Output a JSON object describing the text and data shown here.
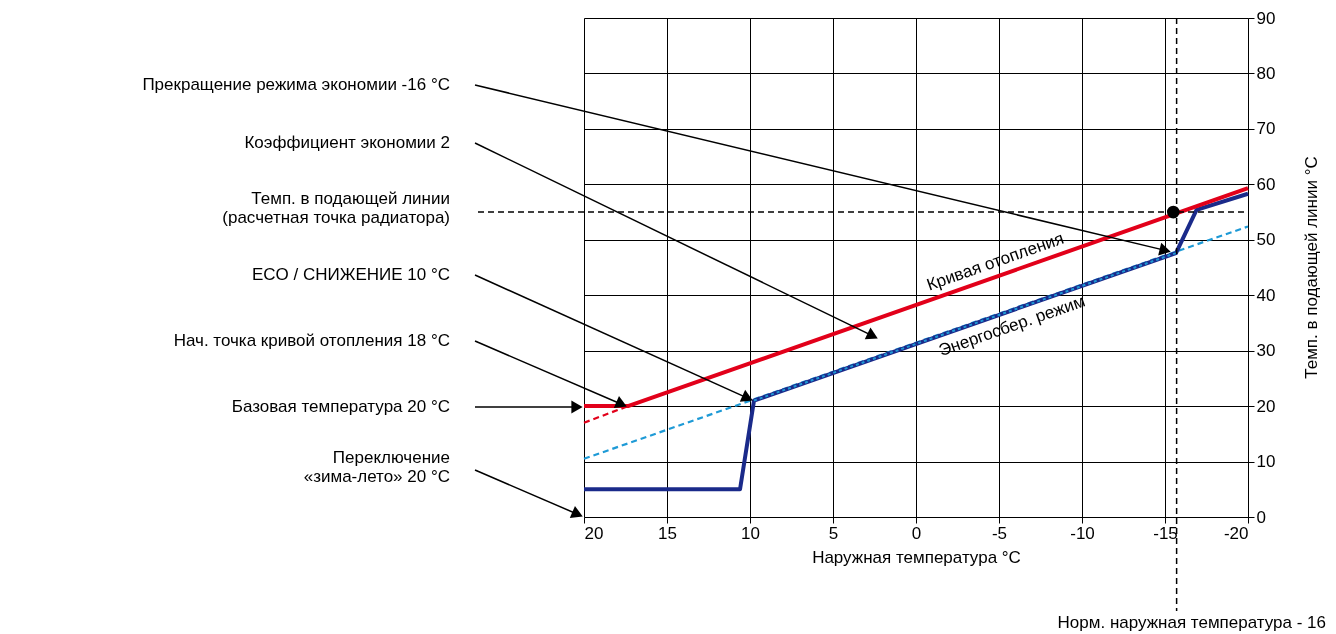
{
  "chart_data": {
    "type": "line",
    "xlabel": "Наружная температура  °C",
    "ylabel": "Темп. в подающей линии °C",
    "xlim": [
      20,
      -20
    ],
    "xticks": [
      20,
      15,
      10,
      5,
      0,
      -5,
      -10,
      -15,
      -20
    ],
    "ylim": [
      0,
      90
    ],
    "yticks": [
      0,
      10,
      20,
      30,
      40,
      50,
      60,
      70,
      80,
      90
    ],
    "grid": true,
    "series": [
      {
        "color": "#1e9ad6",
        "line_style": "dashed",
        "x": [
          20,
          -20
        ],
        "values": [
          10.5,
          52.4
        ]
      },
      {
        "color": "#e2001a",
        "line_style": "dashed",
        "x": [
          20,
          17.35
        ],
        "values": [
          17,
          20
        ]
      },
      {
        "name": "Энергосбер. режим",
        "color": "#1a2a8a",
        "line_style": "solid",
        "x": [
          20,
          10.6,
          9.76,
          -15.66,
          -16.9,
          -20
        ],
        "values": [
          5,
          5,
          21,
          47.6,
          55.4,
          58.3
        ]
      },
      {
        "color": "#1e9ad6",
        "line_style": "dotted",
        "x": [
          9.76,
          -15.66
        ],
        "values": [
          21,
          47.6
        ]
      },
      {
        "name": "Кривая отопления",
        "color": "#e2001a",
        "line_style": "solid",
        "x": [
          20,
          17.35,
          -20
        ],
        "values": [
          20,
          20,
          59.3
        ]
      },
      {
        "type": "scatter",
        "color": "#000000",
        "x": [
          -15.5
        ],
        "values": [
          55
        ]
      }
    ],
    "ref_lines": [
      {
        "axis": "y",
        "value": 55,
        "label": "Темп. в подающей линии\n(расчетная точка радиатора)",
        "line_style": "dashed",
        "color": "#000000"
      },
      {
        "axis": "x",
        "value": -15.7,
        "label": "Норм. наружная температура - 16",
        "line_style": "dashed",
        "color": "#000000"
      }
    ],
    "annotations": [
      "Прекращение режима экономии  -16 °C",
      "Коэффициент экономии  2",
      "ECO / СНИЖЕНИЕ 10 °C",
      "Нач. точка кривой отопления  18 °C",
      "Базовая температура  20 °C",
      "Переключение\n«зима-лето» 20 °C"
    ]
  }
}
